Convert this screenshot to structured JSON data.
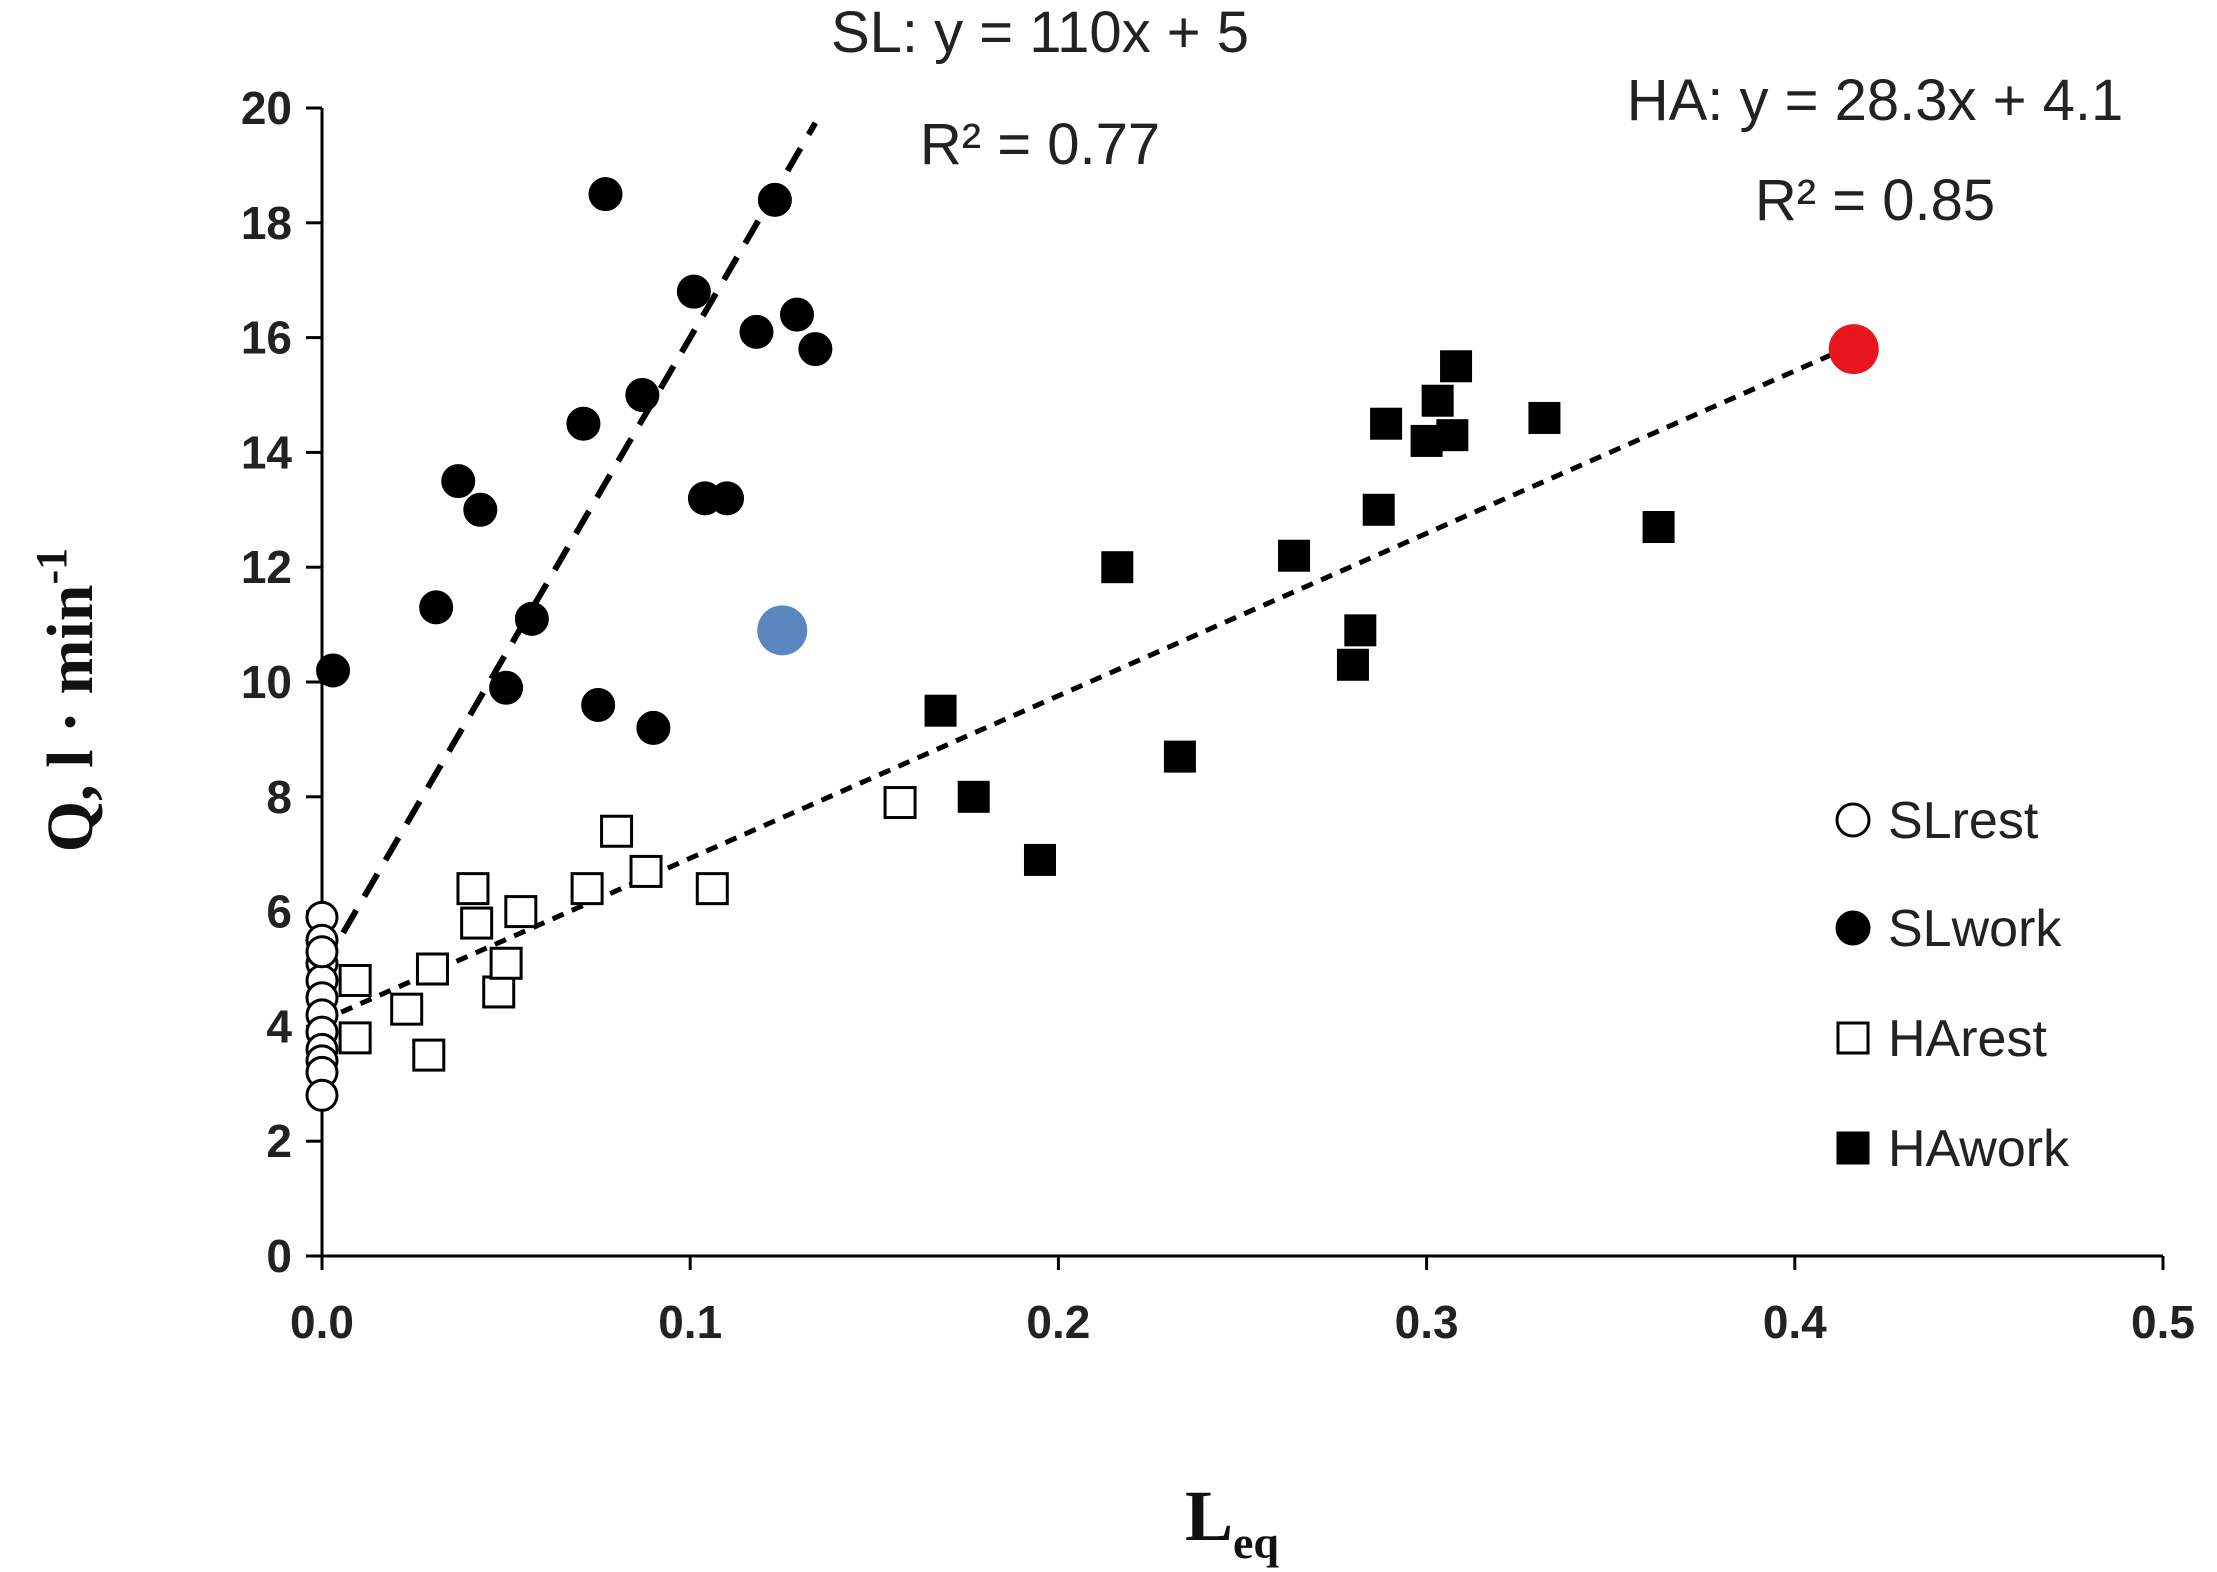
{
  "chart_data": {
    "type": "scatter",
    "title": "",
    "xlabel": "L",
    "xlabel_sub": "eq",
    "ylabel": "Q, l · min",
    "ylabel_sup": "-1",
    "xlim": [
      0,
      0.5
    ],
    "ylim": [
      0,
      20
    ],
    "x_ticks": [
      0.0,
      0.1,
      0.2,
      0.3,
      0.4,
      0.5
    ],
    "x_tick_labels": [
      "0.0",
      "0.1",
      "0.2",
      "0.3",
      "0.4",
      "0.5"
    ],
    "y_ticks": [
      0,
      2,
      4,
      6,
      8,
      10,
      12,
      14,
      16,
      18,
      20
    ],
    "y_tick_labels": [
      "0",
      "2",
      "4",
      "6",
      "8",
      "10",
      "12",
      "14",
      "16",
      "18",
      "20"
    ],
    "grid": false,
    "legend_position": "right",
    "series": [
      {
        "name": "SLrest",
        "marker": "circle-open",
        "color": "#000000",
        "x": [
          0.0,
          0.0,
          0.0,
          0.0,
          0.0,
          0.0,
          0.0,
          0.0,
          0.0,
          0.0,
          0.0,
          0.0
        ],
        "y": [
          5.9,
          5.5,
          5.1,
          4.8,
          4.5,
          4.2,
          3.9,
          3.6,
          3.4,
          3.2,
          2.8,
          5.3
        ]
      },
      {
        "name": "SLwork",
        "marker": "circle-filled",
        "color": "#000000",
        "x": [
          0.003,
          0.031,
          0.037,
          0.043,
          0.05,
          0.057,
          0.071,
          0.075,
          0.077,
          0.087,
          0.09,
          0.101,
          0.104,
          0.11,
          0.118,
          0.123,
          0.129,
          0.134
        ],
        "y": [
          10.2,
          11.3,
          13.5,
          13.0,
          9.9,
          11.1,
          14.5,
          9.6,
          18.5,
          15.0,
          9.2,
          16.8,
          13.2,
          13.2,
          16.1,
          18.4,
          16.4,
          15.8
        ]
      },
      {
        "name": "HArest",
        "marker": "square-open",
        "color": "#000000",
        "x": [
          0.009,
          0.009,
          0.023,
          0.029,
          0.03,
          0.041,
          0.042,
          0.048,
          0.05,
          0.054,
          0.072,
          0.08,
          0.088,
          0.106,
          0.157
        ],
        "y": [
          4.8,
          3.8,
          4.3,
          3.5,
          5.0,
          6.4,
          5.8,
          4.6,
          5.1,
          6.0,
          6.4,
          7.4,
          6.7,
          6.4,
          7.9
        ]
      },
      {
        "name": "HAwork",
        "marker": "square-filled",
        "color": "#000000",
        "x": [
          0.168,
          0.177,
          0.195,
          0.216,
          0.233,
          0.264,
          0.28,
          0.282,
          0.287,
          0.289,
          0.3,
          0.303,
          0.307,
          0.308,
          0.332,
          0.363
        ],
        "y": [
          9.5,
          8.0,
          6.9,
          12.0,
          8.7,
          12.2,
          10.3,
          10.9,
          13.0,
          14.5,
          14.2,
          14.9,
          14.3,
          15.5,
          14.6,
          12.7
        ]
      },
      {
        "name": "Highlighted point (blue)",
        "marker": "circle-filled-large",
        "color": "#5b86c0",
        "show_in_legend": false,
        "x": [
          0.125
        ],
        "y": [
          10.9
        ]
      },
      {
        "name": "Highlighted point (red)",
        "marker": "circle-filled-large",
        "color": "#e8161e",
        "show_in_legend": false,
        "x": [
          0.416
        ],
        "y": [
          15.8
        ]
      }
    ],
    "trendlines": [
      {
        "name": "SL fit",
        "slope": 110,
        "intercept": 5,
        "x_range": [
          0.0,
          0.134
        ],
        "style": "long-dash"
      },
      {
        "name": "HA fit",
        "slope": 28.3,
        "intercept": 4.1,
        "x_range": [
          0.0,
          0.416
        ],
        "style": "short-dash"
      }
    ],
    "annotations": [
      {
        "id": "sl_eq",
        "text": "SL: y = 110x + 5"
      },
      {
        "id": "sl_r2",
        "text": "R² = 0.77"
      },
      {
        "id": "ha_eq",
        "text": "HA: y = 28.3x + 4.1"
      },
      {
        "id": "ha_r2",
        "text": "R² = 0.85"
      }
    ]
  }
}
